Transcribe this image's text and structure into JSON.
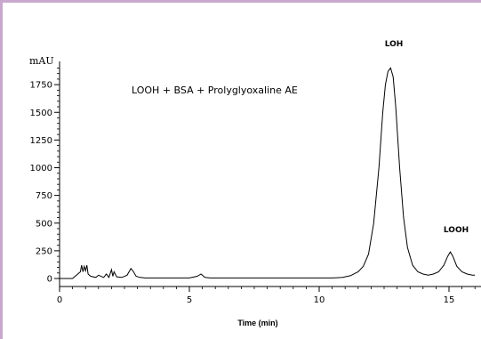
{
  "chart_data": {
    "type": "line",
    "annotation": "LOOH + BSA + Prolyglyoxaline AE",
    "xlabel": "Time (min)",
    "ylabel": "mAU",
    "xlim": [
      0,
      16
    ],
    "ylim": [
      -60,
      1950
    ],
    "x_ticks": [
      0,
      5,
      10,
      15
    ],
    "y_ticks": [
      0,
      250,
      500,
      750,
      1000,
      1250,
      1500,
      1750
    ],
    "grid": false,
    "peaks": [
      {
        "label": "LOH",
        "x": 12.75,
        "y": 1900
      },
      {
        "label": "LOOH",
        "x": 15.05,
        "y": 240
      }
    ],
    "series": [
      {
        "x": [
          0.0,
          0.5,
          0.8,
          0.85,
          0.9,
          0.95,
          1.0,
          1.05,
          1.1,
          1.2,
          1.4,
          1.5,
          1.7,
          1.8,
          1.9,
          2.0,
          2.05,
          2.1,
          2.2,
          2.4,
          2.6,
          2.75,
          2.85,
          2.95,
          3.1,
          3.3,
          3.6,
          4.0,
          4.5,
          5.0,
          5.3,
          5.45,
          5.6,
          5.8,
          6.2,
          7.0,
          8.0,
          9.0,
          9.5,
          10.0,
          10.5,
          10.9,
          11.2,
          11.5,
          11.7,
          11.9,
          12.1,
          12.3,
          12.45,
          12.55,
          12.65,
          12.75,
          12.85,
          12.95,
          13.1,
          13.25,
          13.4,
          13.6,
          13.8,
          14.0,
          14.2,
          14.4,
          14.6,
          14.8,
          14.95,
          15.05,
          15.15,
          15.3,
          15.5,
          15.7,
          15.9,
          16.0
        ],
        "y": [
          0,
          0,
          60,
          120,
          60,
          110,
          70,
          120,
          40,
          20,
          10,
          30,
          10,
          40,
          10,
          80,
          20,
          60,
          15,
          10,
          30,
          90,
          60,
          20,
          10,
          5,
          5,
          5,
          5,
          5,
          20,
          40,
          10,
          5,
          5,
          5,
          5,
          5,
          5,
          5,
          5,
          10,
          25,
          60,
          110,
          220,
          500,
          1000,
          1500,
          1750,
          1870,
          1900,
          1820,
          1550,
          1000,
          550,
          280,
          120,
          60,
          40,
          30,
          40,
          60,
          120,
          200,
          240,
          200,
          110,
          60,
          40,
          30,
          30
        ]
      }
    ]
  }
}
